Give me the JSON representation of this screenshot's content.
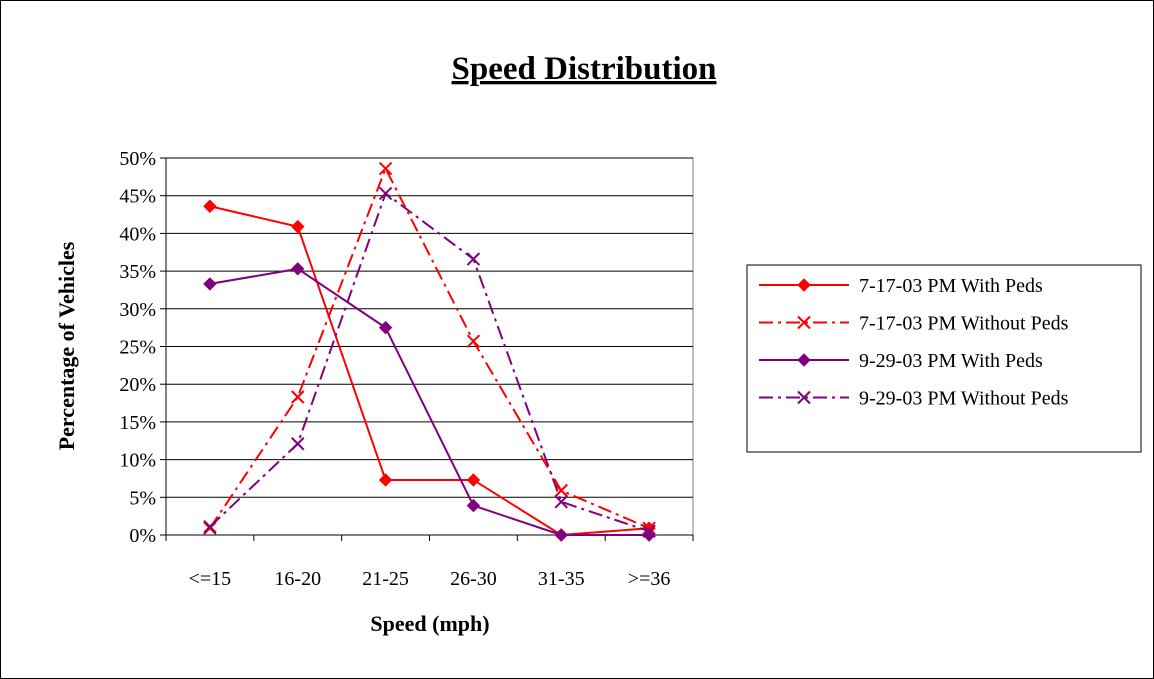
{
  "chart_data": {
    "type": "line",
    "title": "Speed Distribution",
    "xlabel": "Speed (mph)",
    "ylabel": "Percentage of Vehicles",
    "categories": [
      "<=15",
      "16-20",
      "21-25",
      "26-30",
      "31-35",
      ">=36"
    ],
    "y_ticks": [
      "0%",
      "5%",
      "10%",
      "15%",
      "20%",
      "25%",
      "30%",
      "35%",
      "40%",
      "45%",
      "50%"
    ],
    "ylim": [
      0,
      50
    ],
    "y_unit": "percent",
    "grid": "horizontal",
    "legend_position": "right",
    "series": [
      {
        "name": "7-17-03 PM With Peds",
        "values": [
          43.6,
          40.9,
          7.3,
          7.3,
          0,
          0.9
        ],
        "color": "#ff0000",
        "line_style": "solid",
        "marker": "diamond"
      },
      {
        "name": "7-17-03 PM Without Peds",
        "values": [
          0.9,
          18.3,
          48.6,
          25.7,
          5.9,
          0.9
        ],
        "color": "#ff0000",
        "line_style": "dash-dot",
        "marker": "x"
      },
      {
        "name": "9-29-03 PM With Peds",
        "values": [
          33.3,
          35.3,
          27.5,
          3.9,
          0,
          0
        ],
        "color": "#800080",
        "line_style": "solid",
        "marker": "diamond"
      },
      {
        "name": "9-29-03 PM Without Peds",
        "values": [
          1.1,
          12.1,
          45.3,
          36.6,
          4.4,
          0.5
        ],
        "color": "#800080",
        "line_style": "dash-dot",
        "marker": "x"
      }
    ]
  }
}
